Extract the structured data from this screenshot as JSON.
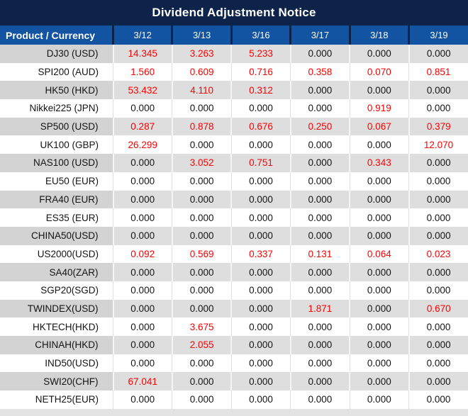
{
  "title": "Dividend Adjustment Notice",
  "header": {
    "product_label": "Product / Currency",
    "dates": [
      "3/12",
      "3/13",
      "3/16",
      "3/17",
      "3/18",
      "3/19"
    ]
  },
  "rows": [
    {
      "product": "DJ30 (USD)",
      "values": [
        "14.345",
        "3.263",
        "5.233",
        "0.000",
        "0.000",
        "0.000"
      ],
      "red": [
        true,
        true,
        true,
        false,
        false,
        false
      ]
    },
    {
      "product": "SPI200 (AUD)",
      "values": [
        "1.560",
        "0.609",
        "0.716",
        "0.358",
        "0.070",
        "0.851"
      ],
      "red": [
        true,
        true,
        true,
        true,
        true,
        true
      ]
    },
    {
      "product": "HK50 (HKD)",
      "values": [
        "53.432",
        "4.110",
        "0.312",
        "0.000",
        "0.000",
        "0.000"
      ],
      "red": [
        true,
        true,
        true,
        false,
        false,
        false
      ]
    },
    {
      "product": "Nikkei225 (JPN)",
      "values": [
        "0.000",
        "0.000",
        "0.000",
        "0.000",
        "0.919",
        "0.000"
      ],
      "red": [
        false,
        false,
        false,
        false,
        true,
        false
      ]
    },
    {
      "product": "SP500 (USD)",
      "values": [
        "0.287",
        "0.878",
        "0.676",
        "0.250",
        "0.067",
        "0.379"
      ],
      "red": [
        true,
        true,
        true,
        true,
        true,
        true
      ]
    },
    {
      "product": "UK100 (GBP)",
      "values": [
        "26.299",
        "0.000",
        "0.000",
        "0.000",
        "0.000",
        "12.070"
      ],
      "red": [
        true,
        false,
        false,
        false,
        false,
        true
      ]
    },
    {
      "product": "NAS100 (USD)",
      "values": [
        "0.000",
        "3.052",
        "0.751",
        "0.000",
        "0.343",
        "0.000"
      ],
      "red": [
        false,
        true,
        true,
        false,
        true,
        false
      ]
    },
    {
      "product": "EU50 (EUR)",
      "values": [
        "0.000",
        "0.000",
        "0.000",
        "0.000",
        "0.000",
        "0.000"
      ],
      "red": [
        false,
        false,
        false,
        false,
        false,
        false
      ]
    },
    {
      "product": "FRA40 (EUR)",
      "values": [
        "0.000",
        "0.000",
        "0.000",
        "0.000",
        "0.000",
        "0.000"
      ],
      "red": [
        false,
        false,
        false,
        false,
        false,
        false
      ]
    },
    {
      "product": "ES35 (EUR)",
      "values": [
        "0.000",
        "0.000",
        "0.000",
        "0.000",
        "0.000",
        "0.000"
      ],
      "red": [
        false,
        false,
        false,
        false,
        false,
        false
      ]
    },
    {
      "product": "CHINA50(USD)",
      "values": [
        "0.000",
        "0.000",
        "0.000",
        "0.000",
        "0.000",
        "0.000"
      ],
      "red": [
        false,
        false,
        false,
        false,
        false,
        false
      ]
    },
    {
      "product": "US2000(USD)",
      "values": [
        "0.092",
        "0.569",
        "0.337",
        "0.131",
        "0.064",
        "0.023"
      ],
      "red": [
        true,
        true,
        true,
        true,
        true,
        true
      ]
    },
    {
      "product": "SA40(ZAR)",
      "values": [
        "0.000",
        "0.000",
        "0.000",
        "0.000",
        "0.000",
        "0.000"
      ],
      "red": [
        false,
        false,
        false,
        false,
        false,
        false
      ]
    },
    {
      "product": "SGP20(SGD)",
      "values": [
        "0.000",
        "0.000",
        "0.000",
        "0.000",
        "0.000",
        "0.000"
      ],
      "red": [
        false,
        false,
        false,
        false,
        false,
        false
      ]
    },
    {
      "product": "TWINDEX(USD)",
      "values": [
        "0.000",
        "0.000",
        "0.000",
        "1.871",
        "0.000",
        "0.670"
      ],
      "red": [
        false,
        false,
        false,
        true,
        false,
        true
      ]
    },
    {
      "product": "HKTECH(HKD)",
      "values": [
        "0.000",
        "3.675",
        "0.000",
        "0.000",
        "0.000",
        "0.000"
      ],
      "red": [
        false,
        true,
        false,
        false,
        false,
        false
      ]
    },
    {
      "product": "CHINAH(HKD)",
      "values": [
        "0.000",
        "2.055",
        "0.000",
        "0.000",
        "0.000",
        "0.000"
      ],
      "red": [
        false,
        true,
        false,
        false,
        false,
        false
      ]
    },
    {
      "product": "IND50(USD)",
      "values": [
        "0.000",
        "0.000",
        "0.000",
        "0.000",
        "0.000",
        "0.000"
      ],
      "red": [
        false,
        false,
        false,
        false,
        false,
        false
      ]
    },
    {
      "product": "SWI20(CHF)",
      "values": [
        "67.041",
        "0.000",
        "0.000",
        "0.000",
        "0.000",
        "0.000"
      ],
      "red": [
        true,
        false,
        false,
        false,
        false,
        false
      ]
    },
    {
      "product": "NETH25(EUR)",
      "values": [
        "0.000",
        "0.000",
        "0.000",
        "0.000",
        "0.000",
        "0.000"
      ],
      "red": [
        false,
        false,
        false,
        false,
        false,
        false
      ]
    }
  ],
  "colors": {
    "title_bg": "#0d2349",
    "header_bg": "#1254a2",
    "header_separator": "#0d2349",
    "product_cell_gray": "#d3d3d3",
    "row_stripe_gray": "#dedede",
    "row_stripe_white": "#ffffff",
    "value_red": "#fe0000",
    "value_black": "#141414",
    "bottom_strip": "#e3e3e3"
  }
}
